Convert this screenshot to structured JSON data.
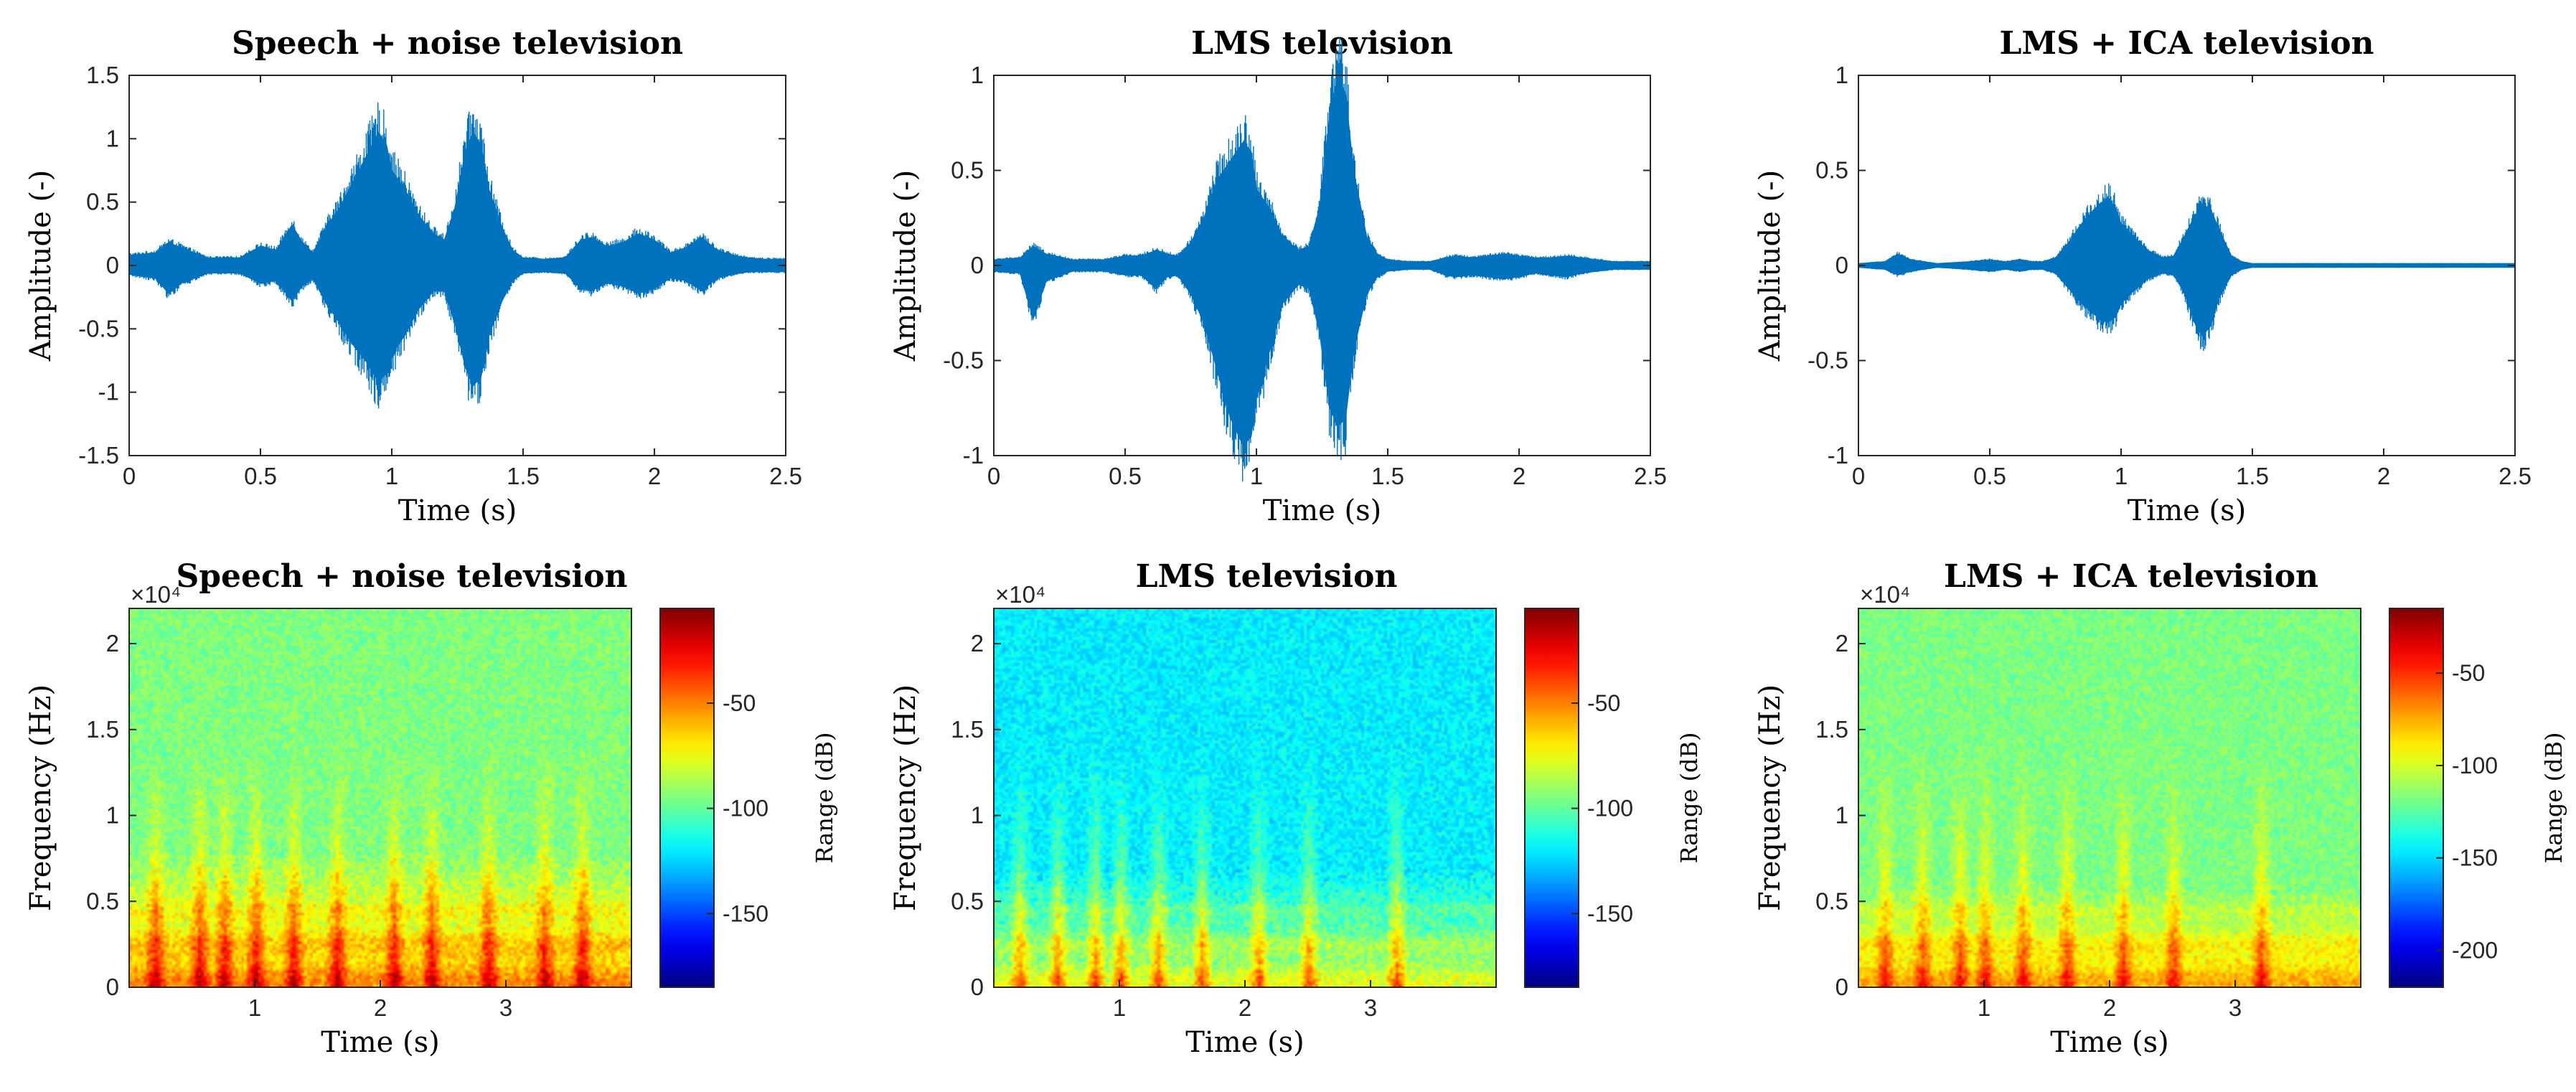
{
  "chart_data": [
    {
      "type": "line",
      "title": "Speech + noise television",
      "xlabel": "Time (s)",
      "ylabel": "Amplitude (-)",
      "xlim": [
        0,
        2.5
      ],
      "ylim": [
        -1.5,
        1.5
      ],
      "xticks": [
        "0",
        "0.5",
        "1",
        "1.5",
        "2",
        "2.5"
      ],
      "yticks": [
        "-1.5",
        "-1",
        "-0.5",
        "0",
        "0.5",
        "1",
        "1.5"
      ],
      "color": "#0072bd",
      "envelope": {
        "t": [
          0,
          0.1,
          0.15,
          0.2,
          0.3,
          0.42,
          0.5,
          0.56,
          0.62,
          0.66,
          0.7,
          0.75,
          0.8,
          0.85,
          0.9,
          0.95,
          0.98,
          1.0,
          1.05,
          1.1,
          1.16,
          1.2,
          1.24,
          1.28,
          1.31,
          1.34,
          1.37,
          1.42,
          1.46,
          1.5,
          1.58,
          1.66,
          1.72,
          1.76,
          1.82,
          1.88,
          1.94,
          2.0,
          2.06,
          2.12,
          2.18,
          2.24,
          2.3,
          2.36,
          2.42,
          2.5
        ],
        "upper": [
          0.08,
          0.1,
          0.18,
          0.14,
          0.06,
          0.06,
          0.15,
          0.12,
          0.32,
          0.18,
          0.1,
          0.3,
          0.45,
          0.65,
          0.85,
          1.05,
          0.95,
          0.75,
          0.6,
          0.4,
          0.25,
          0.2,
          0.45,
          0.9,
          1.05,
          0.95,
          0.6,
          0.3,
          0.12,
          0.06,
          0.05,
          0.06,
          0.2,
          0.22,
          0.15,
          0.18,
          0.25,
          0.2,
          0.1,
          0.14,
          0.22,
          0.12,
          0.08,
          0.06,
          0.05,
          0.05
        ],
        "lower": [
          -0.07,
          -0.1,
          -0.22,
          -0.14,
          -0.06,
          -0.06,
          -0.14,
          -0.12,
          -0.28,
          -0.16,
          -0.1,
          -0.3,
          -0.45,
          -0.62,
          -0.75,
          -0.92,
          -0.85,
          -0.7,
          -0.55,
          -0.35,
          -0.2,
          -0.2,
          -0.45,
          -0.8,
          -0.95,
          -0.88,
          -0.55,
          -0.28,
          -0.12,
          -0.06,
          -0.05,
          -0.06,
          -0.18,
          -0.2,
          -0.14,
          -0.16,
          -0.22,
          -0.18,
          -0.1,
          -0.12,
          -0.2,
          -0.1,
          -0.07,
          -0.05,
          -0.05,
          -0.05
        ]
      }
    },
    {
      "type": "line",
      "title": "LMS television",
      "xlabel": "Time (s)",
      "ylabel": "Amplitude (-)",
      "xlim": [
        0,
        2.5
      ],
      "ylim": [
        -1,
        1
      ],
      "xticks": [
        "0",
        "0.5",
        "1",
        "1.5",
        "2",
        "2.5"
      ],
      "yticks": [
        "-1",
        "-0.5",
        "0",
        "0.5",
        "1"
      ],
      "color": "#0072bd",
      "envelope": {
        "t": [
          0,
          0.1,
          0.15,
          0.2,
          0.3,
          0.42,
          0.5,
          0.56,
          0.62,
          0.66,
          0.7,
          0.75,
          0.8,
          0.85,
          0.9,
          0.95,
          0.98,
          1.0,
          1.05,
          1.1,
          1.16,
          1.2,
          1.24,
          1.28,
          1.31,
          1.34,
          1.37,
          1.42,
          1.46,
          1.5,
          1.58,
          1.66,
          1.72,
          1.76,
          1.82,
          1.88,
          1.94,
          2.0,
          2.06,
          2.12,
          2.18,
          2.24,
          2.3,
          2.36,
          2.42,
          2.5
        ],
        "upper": [
          0.03,
          0.04,
          0.1,
          0.06,
          0.03,
          0.03,
          0.05,
          0.05,
          0.08,
          0.06,
          0.05,
          0.12,
          0.25,
          0.45,
          0.55,
          0.65,
          0.6,
          0.4,
          0.3,
          0.15,
          0.08,
          0.1,
          0.3,
          0.8,
          1.0,
          0.9,
          0.5,
          0.15,
          0.06,
          0.03,
          0.02,
          0.02,
          0.04,
          0.05,
          0.04,
          0.05,
          0.06,
          0.05,
          0.04,
          0.04,
          0.05,
          0.04,
          0.03,
          0.02,
          0.02,
          0.02
        ],
        "lower": [
          -0.03,
          -0.04,
          -0.28,
          -0.08,
          -0.03,
          -0.03,
          -0.05,
          -0.05,
          -0.12,
          -0.06,
          -0.05,
          -0.15,
          -0.3,
          -0.55,
          -0.8,
          -0.95,
          -0.9,
          -0.7,
          -0.45,
          -0.2,
          -0.1,
          -0.12,
          -0.35,
          -0.75,
          -0.85,
          -0.8,
          -0.45,
          -0.15,
          -0.06,
          -0.03,
          -0.02,
          -0.02,
          -0.05,
          -0.06,
          -0.05,
          -0.06,
          -0.07,
          -0.06,
          -0.04,
          -0.05,
          -0.06,
          -0.04,
          -0.03,
          -0.02,
          -0.02,
          -0.02
        ]
      }
    },
    {
      "type": "line",
      "title": "LMS + ICA television",
      "xlabel": "Time (s)",
      "ylabel": "Amplitude (-)",
      "xlim": [
        0,
        2.5
      ],
      "ylim": [
        -1,
        1
      ],
      "xticks": [
        "0",
        "0.5",
        "1",
        "1.5",
        "2",
        "2.5"
      ],
      "yticks": [
        "-1",
        "-0.5",
        "0",
        "0.5",
        "1"
      ],
      "color": "#0072bd",
      "envelope": {
        "t": [
          0,
          0.1,
          0.15,
          0.2,
          0.3,
          0.42,
          0.5,
          0.56,
          0.62,
          0.66,
          0.7,
          0.75,
          0.8,
          0.85,
          0.9,
          0.95,
          0.98,
          1.0,
          1.05,
          1.1,
          1.16,
          1.2,
          1.24,
          1.28,
          1.31,
          1.34,
          1.37,
          1.42,
          1.46,
          1.5,
          1.58,
          1.66,
          1.72,
          1.76,
          1.82,
          1.88,
          1.94,
          2.0,
          2.06,
          2.12,
          2.18,
          2.24,
          2.3,
          2.36,
          2.42,
          2.5
        ],
        "upper": [
          0.01,
          0.02,
          0.06,
          0.03,
          0.01,
          0.02,
          0.03,
          0.02,
          0.03,
          0.02,
          0.02,
          0.04,
          0.12,
          0.22,
          0.3,
          0.36,
          0.3,
          0.22,
          0.15,
          0.08,
          0.04,
          0.05,
          0.15,
          0.26,
          0.32,
          0.3,
          0.2,
          0.05,
          0.02,
          0.01,
          0.01,
          0.01,
          0.01,
          0.01,
          0.01,
          0.01,
          0.01,
          0.01,
          0.01,
          0.01,
          0.01,
          0.01,
          0.01,
          0.01,
          0.01,
          0.01
        ],
        "lower": [
          -0.01,
          -0.02,
          -0.05,
          -0.03,
          -0.01,
          -0.02,
          -0.03,
          -0.02,
          -0.03,
          -0.02,
          -0.02,
          -0.04,
          -0.12,
          -0.2,
          -0.26,
          -0.3,
          -0.27,
          -0.2,
          -0.13,
          -0.07,
          -0.04,
          -0.05,
          -0.14,
          -0.3,
          -0.37,
          -0.32,
          -0.18,
          -0.05,
          -0.02,
          -0.01,
          -0.01,
          -0.01,
          -0.01,
          -0.01,
          -0.01,
          -0.01,
          -0.01,
          -0.01,
          -0.01,
          -0.01,
          -0.01,
          -0.01,
          -0.01,
          -0.01,
          -0.01,
          -0.01
        ]
      }
    },
    {
      "type": "heatmap",
      "title": "Speech + noise television",
      "xlabel": "Time (s)",
      "ylabel": "Frequency (Hz)",
      "multiplier": "×10⁴",
      "xlim": [
        0,
        4
      ],
      "ylim": [
        0,
        22050
      ],
      "xticks": [
        "1",
        "2",
        "3"
      ],
      "xtick_values": [
        1,
        2,
        3
      ],
      "yticks": [
        "0",
        "0.5",
        "1",
        "1.5",
        "2"
      ],
      "ytick_values": [
        0,
        5000,
        10000,
        15000,
        20000
      ],
      "colorbar": {
        "label": "Range (dB)",
        "clim": [
          -185,
          -5
        ],
        "ticks": [
          "-50",
          "-100",
          "-150"
        ],
        "tick_values": [
          -50,
          -100,
          -150
        ],
        "colormap": "jet"
      },
      "background_db": -95,
      "speech_band_hz": 8000,
      "bursts_s": [
        0.2,
        0.55,
        0.75,
        1.0,
        1.3,
        1.65,
        2.1,
        2.4,
        2.85,
        3.3,
        3.6
      ]
    },
    {
      "type": "heatmap",
      "title": "LMS television",
      "xlabel": "Time (s)",
      "ylabel": "Frequency (Hz)",
      "multiplier": "×10⁴",
      "xlim": [
        0,
        4
      ],
      "ylim": [
        0,
        22050
      ],
      "xticks": [
        "1",
        "2",
        "3"
      ],
      "xtick_values": [
        1,
        2,
        3
      ],
      "yticks": [
        "0",
        "0.5",
        "1",
        "1.5",
        "2"
      ],
      "ytick_values": [
        0,
        5000,
        10000,
        15000,
        20000
      ],
      "colorbar": {
        "label": "Range (dB)",
        "clim": [
          -185,
          -5
        ],
        "ticks": [
          "-50",
          "-100",
          "-150"
        ],
        "tick_values": [
          -50,
          -100,
          -150
        ],
        "colormap": "jet"
      },
      "background_db": -120,
      "speech_band_hz": 7000,
      "bursts_s": [
        0.2,
        0.5,
        0.8,
        1.0,
        1.3,
        1.65,
        2.1,
        2.5,
        3.2
      ]
    },
    {
      "type": "heatmap",
      "title": "LMS + ICA television",
      "xlabel": "Time (s)",
      "ylabel": "Frequency (Hz)",
      "multiplier": "×10⁴",
      "xlim": [
        0,
        4
      ],
      "ylim": [
        0,
        22050
      ],
      "xticks": [
        "1",
        "2",
        "3"
      ],
      "xtick_values": [
        1,
        2,
        3
      ],
      "yticks": [
        "0",
        "0.5",
        "1",
        "1.5",
        "2"
      ],
      "ytick_values": [
        0,
        5000,
        10000,
        15000,
        20000
      ],
      "colorbar": {
        "label": "Range (dB)",
        "clim": [
          -220,
          -15
        ],
        "ticks": [
          "-50",
          "-100",
          "-150",
          "-200"
        ],
        "tick_values": [
          -50,
          -100,
          -150,
          -200
        ],
        "colormap": "jet"
      },
      "background_db": -118,
      "speech_band_hz": 6000,
      "bursts_s": [
        0.2,
        0.5,
        0.8,
        1.0,
        1.3,
        1.65,
        2.1,
        2.5,
        3.2
      ]
    }
  ]
}
